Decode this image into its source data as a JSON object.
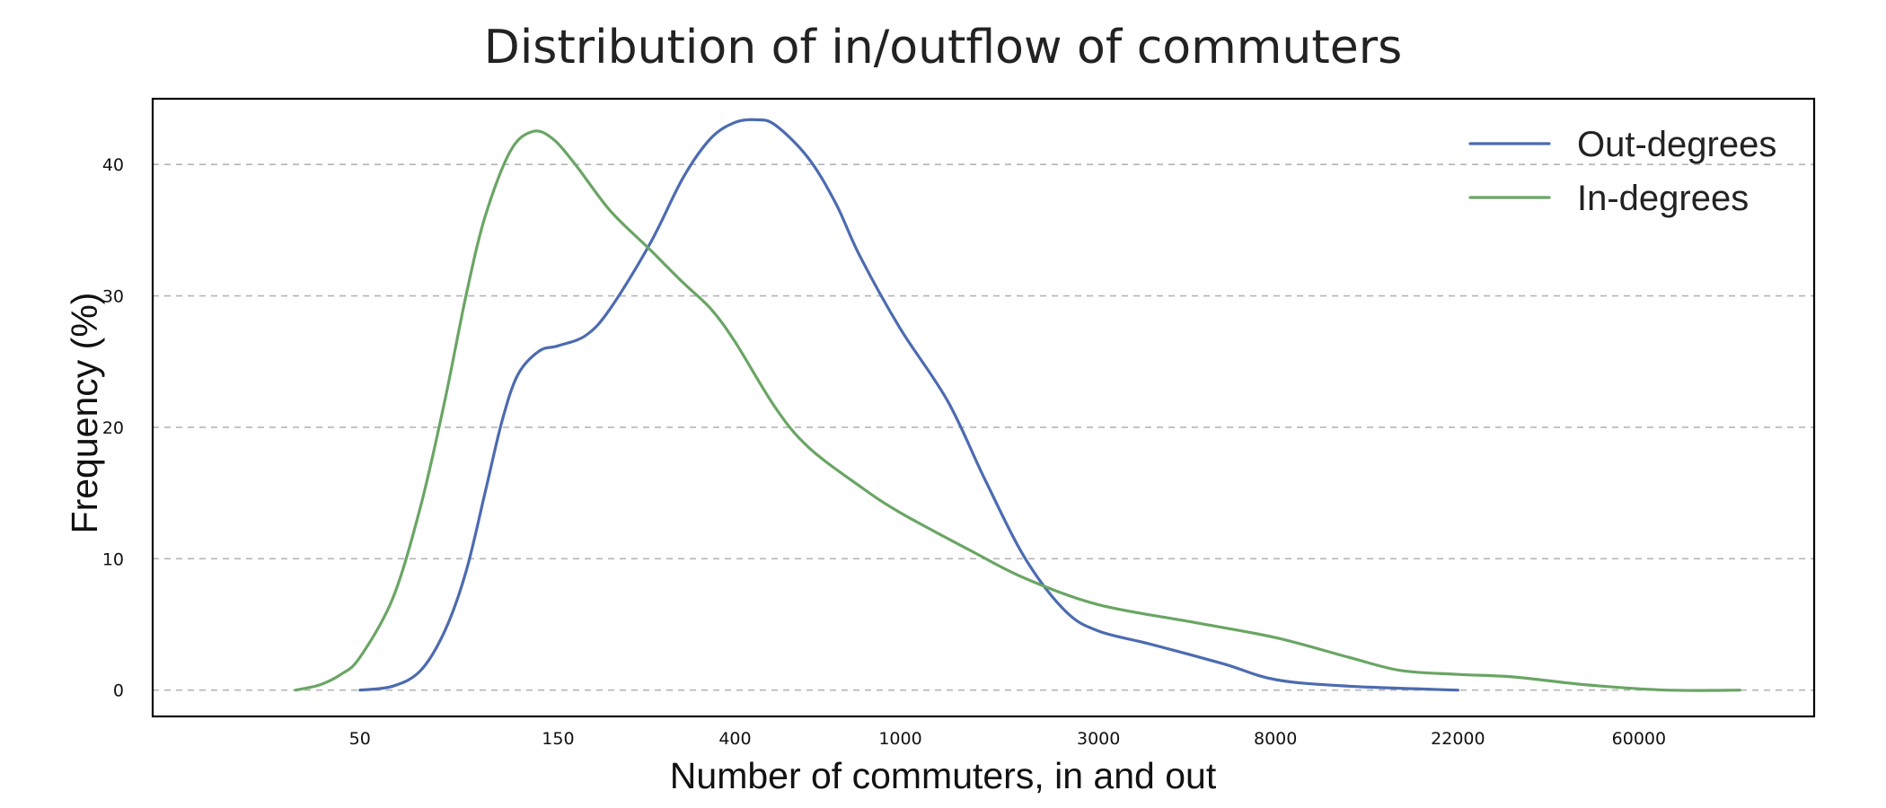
{
  "chart_data": {
    "type": "line",
    "title": "Distribution of in/outflow of commuters",
    "xlabel": "Number of commuters, in and out",
    "ylabel": "Frequency (%)",
    "x_scale": "log",
    "x_tick_labels": [
      "50",
      "150",
      "400",
      "1000",
      "3000",
      "8000",
      "22000",
      "60000"
    ],
    "y_tick_labels": [
      "0",
      "10",
      "20",
      "30",
      "40"
    ],
    "y_ticks": [
      0,
      10,
      20,
      30,
      40
    ],
    "ylim": [
      -2,
      45
    ],
    "grid": "horizontal dashed",
    "legend_position": "top-right",
    "series": [
      {
        "name": "Out-degrees",
        "color": "#4c6bb0",
        "points": [
          [
            50,
            0
          ],
          [
            60,
            0.3
          ],
          [
            70,
            1.5
          ],
          [
            80,
            4.5
          ],
          [
            90,
            9
          ],
          [
            100,
            15
          ],
          [
            110,
            20.5
          ],
          [
            120,
            24
          ],
          [
            135,
            25.8
          ],
          [
            150,
            26.2
          ],
          [
            175,
            27
          ],
          [
            200,
            29
          ],
          [
            250,
            34
          ],
          [
            300,
            39
          ],
          [
            350,
            42
          ],
          [
            400,
            43.2
          ],
          [
            450,
            43.4
          ],
          [
            500,
            43
          ],
          [
            600,
            40.5
          ],
          [
            700,
            37
          ],
          [
            800,
            33
          ],
          [
            1000,
            27.5
          ],
          [
            1300,
            22
          ],
          [
            1600,
            16
          ],
          [
            2000,
            10
          ],
          [
            2500,
            6
          ],
          [
            3000,
            4.5
          ],
          [
            4000,
            3.5
          ],
          [
            6000,
            2
          ],
          [
            8000,
            0.8
          ],
          [
            12000,
            0.3
          ],
          [
            22000,
            0
          ]
        ]
      },
      {
        "name": "In-degrees",
        "color": "#6aa564",
        "points": [
          [
            35,
            0
          ],
          [
            40,
            0.4
          ],
          [
            45,
            1.2
          ],
          [
            50,
            2.5
          ],
          [
            60,
            7
          ],
          [
            70,
            14
          ],
          [
            80,
            22
          ],
          [
            90,
            30
          ],
          [
            100,
            36
          ],
          [
            115,
            41
          ],
          [
            130,
            42.5
          ],
          [
            145,
            42
          ],
          [
            165,
            40
          ],
          [
            200,
            36.5
          ],
          [
            250,
            33.5
          ],
          [
            300,
            31
          ],
          [
            350,
            29
          ],
          [
            400,
            26.5
          ],
          [
            500,
            21.5
          ],
          [
            600,
            18.5
          ],
          [
            800,
            15.5
          ],
          [
            1000,
            13.5
          ],
          [
            1500,
            10.5
          ],
          [
            2000,
            8.5
          ],
          [
            3000,
            6.5
          ],
          [
            5000,
            5.2
          ],
          [
            8000,
            4
          ],
          [
            12000,
            2.5
          ],
          [
            16000,
            1.5
          ],
          [
            22000,
            1.2
          ],
          [
            30000,
            1
          ],
          [
            45000,
            0.4
          ],
          [
            70000,
            0
          ],
          [
            105000,
            0
          ]
        ]
      }
    ]
  }
}
